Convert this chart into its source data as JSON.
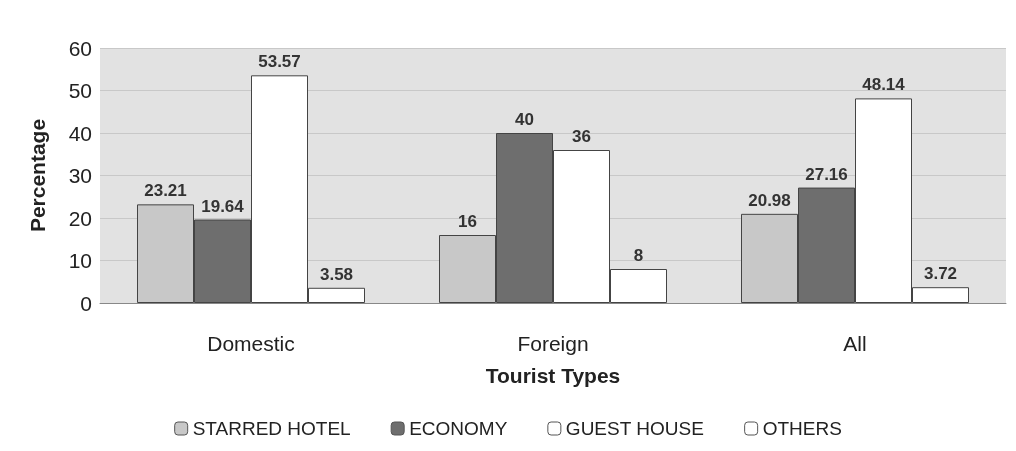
{
  "chart_data": {
    "type": "bar",
    "xlabel": "Tourist Types",
    "ylabel": "Percentage",
    "categories": [
      "Domestic",
      "Foreign",
      "All"
    ],
    "series": [
      {
        "name": "STARRED HOTEL",
        "color": "#c8c8c8",
        "values": [
          23.21,
          16,
          20.98
        ]
      },
      {
        "name": "ECONOMY",
        "color": "#6e6e6e",
        "values": [
          19.64,
          40,
          27.16
        ]
      },
      {
        "name": "GUEST HOUSE",
        "color": "#ffffff",
        "values": [
          53.57,
          36,
          48.14
        ]
      },
      {
        "name": "OTHERS",
        "color": "#ffffff",
        "values": [
          3.58,
          8,
          3.72
        ]
      }
    ],
    "ylim": [
      0,
      60
    ],
    "yticks": [
      0,
      10,
      20,
      30,
      40,
      50,
      60
    ],
    "grid": "y",
    "legend": "bottom",
    "data_labels": true
  }
}
